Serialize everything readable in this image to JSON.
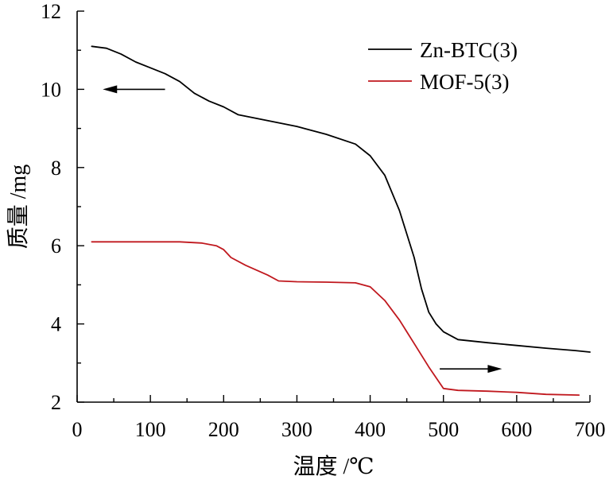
{
  "chart_data": {
    "type": "line",
    "title": "",
    "xlabel": "温度 /℃",
    "ylabel": "质量 /mg",
    "xlim": [
      0,
      700
    ],
    "ylim": [
      2,
      12
    ],
    "xticks": [
      "0",
      "100",
      "200",
      "300",
      "400",
      "500",
      "600",
      "700"
    ],
    "yticks": [
      "2",
      "4",
      "6",
      "8",
      "10",
      "12"
    ],
    "grid": false,
    "legend_position": "top-right",
    "series": [
      {
        "name": "Zn-BTC(3)",
        "color": "#000000",
        "axis": "left",
        "x": [
          20,
          40,
          60,
          80,
          100,
          120,
          140,
          160,
          180,
          200,
          220,
          260,
          300,
          340,
          380,
          400,
          420,
          440,
          460,
          470,
          480,
          490,
          500,
          520,
          560,
          600,
          640,
          680,
          700
        ],
        "y": [
          11.1,
          11.05,
          10.9,
          10.7,
          10.55,
          10.4,
          10.2,
          9.9,
          9.7,
          9.55,
          9.35,
          9.2,
          9.05,
          8.85,
          8.6,
          8.3,
          7.8,
          6.9,
          5.7,
          4.9,
          4.3,
          4.0,
          3.8,
          3.6,
          3.52,
          3.45,
          3.38,
          3.32,
          3.28
        ]
      },
      {
        "name": "MOF-5(3)",
        "color": "#c0181e",
        "axis": "right",
        "x": [
          20,
          60,
          100,
          140,
          170,
          190,
          200,
          210,
          230,
          260,
          275,
          300,
          340,
          380,
          400,
          420,
          440,
          460,
          480,
          500,
          520,
          560,
          600,
          640,
          685
        ],
        "y": [
          6.1,
          6.1,
          6.1,
          6.1,
          6.07,
          6.0,
          5.9,
          5.7,
          5.5,
          5.25,
          5.1,
          5.08,
          5.07,
          5.05,
          4.95,
          4.6,
          4.1,
          3.5,
          2.9,
          2.35,
          2.3,
          2.28,
          2.25,
          2.2,
          2.18
        ]
      }
    ],
    "annotations": [
      {
        "type": "arrow",
        "direction": "left",
        "meaning": "Zn-BTC(3) reads on left axis",
        "from": [
          120,
          10.0
        ],
        "to": [
          35,
          10.0
        ]
      },
      {
        "type": "arrow",
        "direction": "right",
        "meaning": "MOF-5(3) reads on right axis",
        "from": [
          495,
          2.85
        ],
        "to": [
          580,
          2.85
        ]
      }
    ]
  }
}
